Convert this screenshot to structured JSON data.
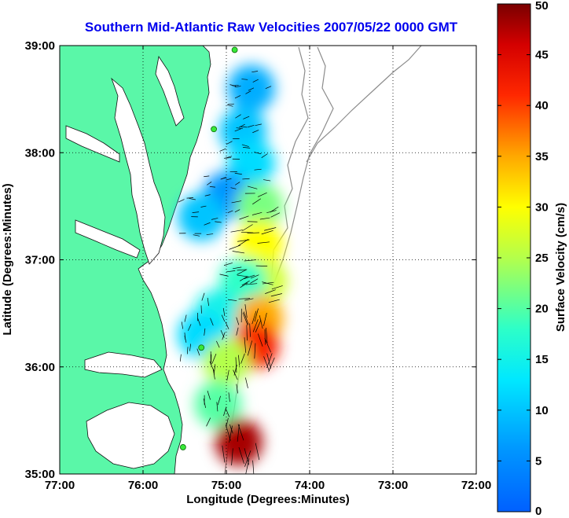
{
  "chart_data": {
    "type": "heatmap",
    "title": "Southern Mid-Atlantic Raw Velocities 2007/05/22 0000 GMT",
    "xlabel": "Longitude (Degrees:Minutes)",
    "ylabel": "Latitude (Degrees:Minutes)",
    "xlim": [
      -77,
      -72
    ],
    "ylim": [
      35,
      39
    ],
    "x_ticks": [
      {
        "value": -77,
        "label": "77:00"
      },
      {
        "value": -76,
        "label": "76:00"
      },
      {
        "value": -75,
        "label": "75:00"
      },
      {
        "value": -74,
        "label": "74:00"
      },
      {
        "value": -73,
        "label": "73:00"
      },
      {
        "value": -72,
        "label": "72:00"
      }
    ],
    "y_ticks": [
      {
        "value": 35,
        "label": "35:00"
      },
      {
        "value": 36,
        "label": "36:00"
      },
      {
        "value": 37,
        "label": "37:00"
      },
      {
        "value": 38,
        "label": "38:00"
      },
      {
        "value": 39,
        "label": "39:00"
      }
    ],
    "grid": true,
    "colorbar": {
      "label": "Surface Velocity (cm/s)",
      "range": [
        0,
        50
      ],
      "ticks": [
        {
          "value": 0,
          "label": "0"
        },
        {
          "value": 5,
          "label": "5"
        },
        {
          "value": 10,
          "label": "10"
        },
        {
          "value": 15,
          "label": "15"
        },
        {
          "value": 20,
          "label": "20"
        },
        {
          "value": 25,
          "label": "25"
        },
        {
          "value": 30,
          "label": "30"
        },
        {
          "value": 35,
          "label": "35"
        },
        {
          "value": 40,
          "label": "40"
        },
        {
          "value": 45,
          "label": "45"
        },
        {
          "value": 50,
          "label": "50"
        }
      ],
      "colormap": "jet"
    },
    "velocity_regions": [
      {
        "lon": -74.7,
        "lat": 38.6,
        "speed": 8
      },
      {
        "lon": -74.8,
        "lat": 38.2,
        "speed": 10
      },
      {
        "lon": -74.7,
        "lat": 37.9,
        "speed": 12
      },
      {
        "lon": -75.0,
        "lat": 37.6,
        "speed": 6
      },
      {
        "lon": -75.3,
        "lat": 37.4,
        "speed": 10
      },
      {
        "lon": -74.6,
        "lat": 37.5,
        "speed": 22
      },
      {
        "lon": -74.6,
        "lat": 37.15,
        "speed": 30
      },
      {
        "lon": -74.55,
        "lat": 36.8,
        "speed": 27
      },
      {
        "lon": -74.8,
        "lat": 36.8,
        "speed": 18
      },
      {
        "lon": -75.1,
        "lat": 36.5,
        "speed": 15
      },
      {
        "lon": -74.6,
        "lat": 36.45,
        "speed": 35
      },
      {
        "lon": -74.65,
        "lat": 36.2,
        "speed": 42
      },
      {
        "lon": -75.3,
        "lat": 36.3,
        "speed": 12
      },
      {
        "lon": -75.0,
        "lat": 36.05,
        "speed": 25
      },
      {
        "lon": -75.1,
        "lat": 35.65,
        "speed": 20
      },
      {
        "lon": -74.85,
        "lat": 35.3,
        "speed": 48
      }
    ],
    "stations": [
      {
        "lon": -74.9,
        "lat": 38.96
      },
      {
        "lon": -75.15,
        "lat": 38.22
      },
      {
        "lon": -75.3,
        "lat": 36.18
      },
      {
        "lon": -75.52,
        "lat": 35.25
      }
    ]
  }
}
